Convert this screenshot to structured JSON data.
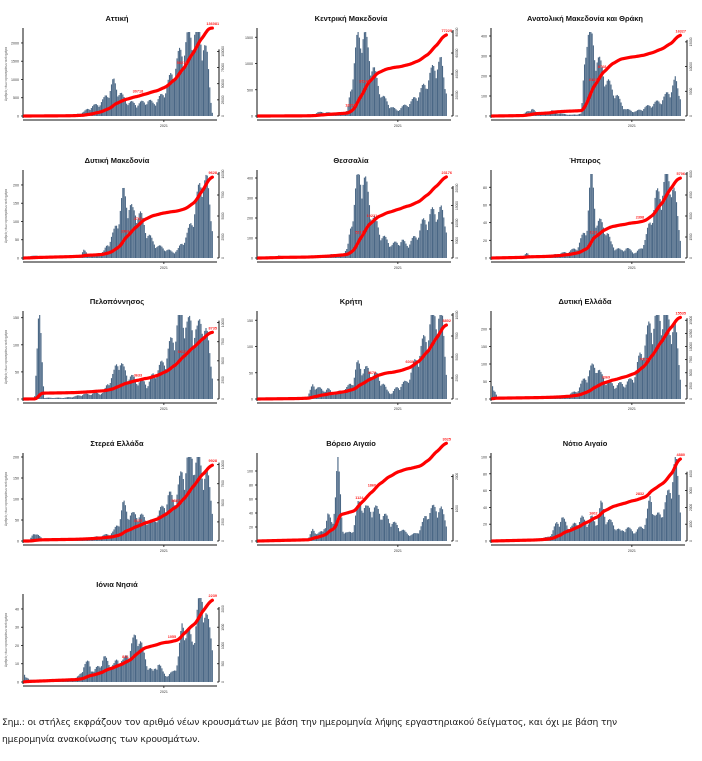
{
  "chart_data": [
    {
      "type": "bar",
      "title": "Αττική",
      "region_index": 0,
      "ylabel": "Αριθμός νέων κρουσμάτων ανά ημέρα",
      "xtick": "2021",
      "ylim": [
        0,
        2300
      ],
      "yticks": [
        0,
        500,
        1000,
        1500,
        2000
      ],
      "y2lim": [
        0,
        130000
      ],
      "y2ticks": [
        0,
        25000,
        50000,
        75000,
        100000
      ],
      "bars_profile": [
        5,
        5,
        5,
        5,
        6,
        6,
        6,
        8,
        10,
        15,
        30,
        60,
        100,
        200,
        250,
        300,
        400,
        600,
        850,
        650,
        450,
        350,
        320,
        300,
        350,
        380,
        330,
        400,
        550,
        800,
        1100,
        1400,
        1700,
        1900,
        2100,
        2200,
        2000,
        1400,
        100
      ],
      "cumulative_labels": [
        {
          "at": 0.62,
          "text": "30718"
        },
        {
          "at": 0.85,
          "text": "56218"
        },
        {
          "at": 1.0,
          "text": "136081"
        }
      ],
      "cumulative_end": 136081
    },
    {
      "type": "bar",
      "title": "Κεντρική Μακεδονία",
      "region_index": 1,
      "ylabel": "",
      "xtick": "2021",
      "ylim": [
        0,
        1600
      ],
      "yticks": [
        0,
        500,
        1000,
        1500
      ],
      "y2lim": [
        0,
        80000
      ],
      "y2ticks": [
        0,
        20000,
        40000,
        60000,
        80000
      ],
      "bars_profile": [
        2,
        2,
        2,
        2,
        3,
        3,
        3,
        3,
        4,
        5,
        10,
        30,
        60,
        70,
        60,
        50,
        50,
        60,
        80,
        700,
        1300,
        1500,
        1200,
        900,
        600,
        350,
        250,
        150,
        100,
        150,
        200,
        250,
        350,
        450,
        600,
        750,
        950,
        900,
        500
      ],
      "cumulative_labels": [
        {
          "at": 0.5,
          "text": "18275"
        },
        {
          "at": 0.58,
          "text": "35140"
        },
        {
          "at": 1.0,
          "text": "77229"
        }
      ],
      "cumulative_end": 77229
    },
    {
      "type": "bar",
      "title": "Ανατολική Μακεδονία και Θράκη",
      "region_index": 2,
      "ylabel": "",
      "xtick": "2021",
      "ylim": [
        0,
        420
      ],
      "yticks": [
        0,
        100,
        200,
        300,
        400
      ],
      "y2lim": [
        0,
        17000
      ],
      "y2ticks": [
        0,
        5000,
        10000,
        15000
      ],
      "bars_profile": [
        2,
        2,
        2,
        2,
        3,
        3,
        3,
        20,
        35,
        10,
        8,
        10,
        25,
        15,
        10,
        8,
        5,
        8,
        10,
        400,
        350,
        280,
        220,
        170,
        130,
        100,
        60,
        30,
        25,
        20,
        30,
        40,
        50,
        60,
        70,
        90,
        120,
        160,
        100
      ],
      "cumulative_labels": [
        {
          "at": 0.55,
          "text": "6426"
        },
        {
          "at": 0.6,
          "text": "8768"
        },
        {
          "at": 1.0,
          "text": "16327"
        }
      ],
      "cumulative_end": 16327
    },
    {
      "type": "bar",
      "title": "Δυτική Μακεδονία",
      "region_index": 3,
      "ylabel": "Αριθμός νέων κρουσμάτων ανά ημέρα",
      "xtick": "2021",
      "ylim": [
        0,
        230
      ],
      "yticks": [
        0,
        50,
        100,
        150,
        200
      ],
      "y2lim": [
        0,
        10000
      ],
      "y2ticks": [
        0,
        2500,
        5000,
        7500,
        10000
      ],
      "bars_profile": [
        2,
        3,
        8,
        3,
        3,
        3,
        3,
        3,
        3,
        3,
        5,
        5,
        20,
        5,
        5,
        10,
        15,
        40,
        60,
        100,
        160,
        140,
        110,
        120,
        90,
        60,
        40,
        30,
        25,
        20,
        15,
        20,
        40,
        60,
        100,
        150,
        210,
        180,
        90
      ],
      "cumulative_labels": [
        {
          "at": 0.55,
          "text": "2906"
        },
        {
          "at": 0.62,
          "text": "4766"
        },
        {
          "at": 1.0,
          "text": "9628"
        }
      ],
      "cumulative_end": 9628
    },
    {
      "type": "bar",
      "title": "Θεσσαλία",
      "region_index": 4,
      "ylabel": "",
      "xtick": "2021",
      "ylim": [
        0,
        420
      ],
      "yticks": [
        0,
        100,
        200,
        300,
        400
      ],
      "y2lim": [
        0,
        24000
      ],
      "y2ticks": [
        0,
        5000,
        10000,
        15000,
        20000
      ],
      "bars_profile": [
        2,
        2,
        8,
        2,
        15,
        2,
        2,
        2,
        2,
        3,
        5,
        10,
        10,
        10,
        10,
        20,
        15,
        20,
        40,
        200,
        350,
        400,
        300,
        200,
        150,
        100,
        80,
        60,
        70,
        80,
        60,
        80,
        100,
        150,
        180,
        200,
        220,
        210,
        160
      ],
      "cumulative_labels": [
        {
          "at": 0.55,
          "text": "5211"
        },
        {
          "at": 0.62,
          "text": "10221"
        },
        {
          "at": 1.0,
          "text": "23176"
        }
      ],
      "cumulative_end": 23176
    },
    {
      "type": "bar",
      "title": "Ήπειρος",
      "region_index": 5,
      "ylabel": "",
      "xtick": "2021",
      "ylim": [
        0,
        95
      ],
      "yticks": [
        0,
        20,
        40,
        60,
        80
      ],
      "y2lim": [
        0,
        6000
      ],
      "y2ticks": [
        0,
        1500,
        3000,
        4500,
        6000
      ],
      "bars_profile": [
        1,
        1,
        1,
        1,
        1,
        1,
        1,
        5,
        1,
        1,
        1,
        2,
        3,
        4,
        5,
        6,
        8,
        10,
        20,
        30,
        90,
        40,
        35,
        30,
        15,
        10,
        8,
        10,
        8,
        5,
        10,
        20,
        40,
        60,
        70,
        80,
        85,
        60,
        25
      ],
      "cumulative_labels": [
        {
          "at": 0.55,
          "text": "1132"
        },
        {
          "at": 0.8,
          "text": "2398"
        },
        {
          "at": 1.0,
          "text": "5706"
        }
      ],
      "cumulative_end": 5706
    },
    {
      "type": "bar",
      "title": "Πελοπόννησος",
      "region_index": 6,
      "ylabel": "Αριθμός νέων κρουσμάτων ανά ημέρα",
      "xtick": "2021",
      "ylim": [
        0,
        155
      ],
      "yticks": [
        0,
        50,
        100,
        150
      ],
      "y2lim": [
        0,
        11000
      ],
      "y2ticks": [
        0,
        2500,
        5000,
        7500,
        10000
      ],
      "bars_profile": [
        1,
        1,
        1,
        150,
        2,
        2,
        2,
        2,
        2,
        3,
        4,
        6,
        8,
        8,
        10,
        10,
        10,
        30,
        40,
        70,
        50,
        40,
        35,
        30,
        30,
        25,
        40,
        50,
        60,
        80,
        100,
        130,
        150,
        120,
        130,
        110,
        140,
        100,
        50
      ],
      "cumulative_labels": [
        {
          "at": 0.62,
          "text": "3633"
        },
        {
          "at": 0.85,
          "text": "6012"
        },
        {
          "at": 1.0,
          "text": "8735"
        }
      ],
      "cumulative_end": 8735
    },
    {
      "type": "bar",
      "title": "Κρήτη",
      "region_index": 7,
      "ylabel": "",
      "xtick": "2021",
      "ylim": [
        0,
        160
      ],
      "yticks": [
        0,
        50,
        100,
        150
      ],
      "y2lim": [
        0,
        10000
      ],
      "y2ticks": [
        0,
        2500,
        5000,
        7500,
        10000
      ],
      "bars_profile": [
        1,
        1,
        1,
        1,
        1,
        1,
        1,
        1,
        2,
        3,
        5,
        25,
        20,
        15,
        18,
        10,
        12,
        15,
        20,
        30,
        60,
        55,
        50,
        45,
        40,
        30,
        15,
        10,
        20,
        25,
        30,
        50,
        70,
        90,
        110,
        140,
        150,
        150,
        60
      ],
      "cumulative_labels": [
        {
          "at": 0.62,
          "text": "3676"
        },
        {
          "at": 0.82,
          "text": "6030"
        },
        {
          "at": 1.0,
          "text": "8802"
        }
      ],
      "cumulative_end": 8802
    },
    {
      "type": "bar",
      "title": "Δυτική Ελλάδα",
      "region_index": 8,
      "ylabel": "",
      "xtick": "2021",
      "ylim": [
        0,
        240
      ],
      "yticks": [
        0,
        50,
        100,
        150,
        200
      ],
      "y2lim": [
        0,
        16000
      ],
      "y2ticks": [
        0,
        2500,
        5000,
        7500,
        10000,
        12500,
        15000
      ],
      "bars_profile": [
        40,
        2,
        2,
        2,
        2,
        2,
        2,
        2,
        2,
        2,
        3,
        4,
        5,
        6,
        8,
        10,
        15,
        20,
        40,
        60,
        80,
        90,
        60,
        50,
        40,
        35,
        40,
        40,
        50,
        70,
        120,
        150,
        200,
        210,
        220,
        230,
        200,
        180,
        70
      ],
      "cumulative_labels": [
        {
          "at": 0.62,
          "text": "3369"
        },
        {
          "at": 0.82,
          "text": "7615"
        },
        {
          "at": 1.0,
          "text": "15535"
        }
      ],
      "cumulative_end": 15535
    },
    {
      "type": "bar",
      "title": "Στερεά Ελλάδα",
      "region_index": 9,
      "ylabel": "Αριθμός νέων κρουσμάτων ανά ημέρα",
      "xtick": "2021",
      "ylim": [
        0,
        200
      ],
      "yticks": [
        0,
        50,
        100,
        150,
        200
      ],
      "y2lim": [
        0,
        11000
      ],
      "y2ticks": [
        0,
        2500,
        5000,
        7500,
        10000
      ],
      "bars_profile": [
        1,
        1,
        20,
        10,
        2,
        2,
        2,
        2,
        2,
        2,
        3,
        4,
        5,
        6,
        8,
        10,
        12,
        15,
        20,
        40,
        80,
        60,
        55,
        60,
        50,
        45,
        40,
        60,
        70,
        100,
        90,
        110,
        150,
        180,
        190,
        170,
        160,
        140,
        80
      ],
      "cumulative_labels": [
        {
          "at": 0.62,
          "text": "3433"
        },
        {
          "at": 0.82,
          "text": "5887"
        },
        {
          "at": 1.0,
          "text": "9928"
        }
      ],
      "cumulative_end": 9928
    },
    {
      "type": "bar",
      "title": "Βόρειο Αιγαίο",
      "region_index": 10,
      "ylabel": "",
      "xtick": "2021",
      "ylim": [
        0,
        120
      ],
      "yticks": [
        0,
        20,
        40,
        60,
        80,
        100
      ],
      "y2lim": [
        0,
        2600
      ],
      "y2ticks": [
        0,
        1000,
        2000
      ],
      "bars_profile": [
        1,
        1,
        1,
        1,
        1,
        1,
        1,
        1,
        1,
        1,
        2,
        15,
        10,
        12,
        35,
        20,
        110,
        15,
        10,
        12,
        45,
        50,
        40,
        45,
        40,
        35,
        30,
        25,
        20,
        15,
        10,
        8,
        10,
        20,
        35,
        40,
        45,
        40,
        25
      ],
      "cumulative_labels": [
        {
          "at": 0.55,
          "text": "1124"
        },
        {
          "at": 0.62,
          "text": "1860"
        },
        {
          "at": 1.0,
          "text": "3025"
        }
      ],
      "cumulative_end": 3025
    },
    {
      "type": "bar",
      "title": "Νότιο Αιγαίο",
      "region_index": 11,
      "ylabel": "",
      "xtick": "2021",
      "ylim": [
        0,
        100
      ],
      "yticks": [
        0,
        20,
        40,
        60,
        80,
        100
      ],
      "y2lim": [
        0,
        5000
      ],
      "y2ticks": [
        0,
        1000,
        2000,
        3000,
        4000
      ],
      "bars_profile": [
        1,
        1,
        1,
        1,
        1,
        1,
        1,
        1,
        1,
        2,
        3,
        4,
        8,
        20,
        25,
        18,
        15,
        20,
        25,
        20,
        25,
        20,
        40,
        25,
        20,
        15,
        10,
        15,
        12,
        10,
        15,
        20,
        50,
        25,
        30,
        40,
        60,
        90,
        40
      ],
      "cumulative_labels": [
        {
          "at": 0.55,
          "text": "1602"
        },
        {
          "at": 0.8,
          "text": "2832"
        },
        {
          "at": 1.0,
          "text": "4880"
        }
      ],
      "cumulative_end": 4880
    },
    {
      "type": "bar",
      "title": "Ιόνια Νησιά",
      "region_index": 12,
      "ylabel": "Αριθμός νέων κρουσμάτων ανά ημέρα",
      "xtick": "2021",
      "ylim": [
        0,
        46
      ],
      "yticks": [
        0,
        10,
        20,
        30,
        40
      ],
      "y2lim": [
        0,
        2300
      ],
      "y2ticks": [
        0,
        500,
        1000,
        1500,
        2000
      ],
      "bars_profile": [
        4,
        1,
        1,
        1,
        1,
        1,
        1,
        1,
        1,
        1,
        1,
        3,
        8,
        10,
        5,
        8,
        12,
        10,
        8,
        12,
        10,
        15,
        20,
        25,
        15,
        8,
        5,
        10,
        5,
        3,
        5,
        10,
        30,
        25,
        20,
        35,
        45,
        30,
        20
      ],
      "cumulative_labels": [
        {
          "at": 0.55,
          "text": "844"
        },
        {
          "at": 0.8,
          "text": "1055"
        },
        {
          "at": 1.0,
          "text": "2239"
        }
      ],
      "cumulative_end": 2239
    }
  ],
  "colors": {
    "bar": "#4a6785",
    "line": "#ff0000",
    "label": "#ff2020",
    "axis": "#111111"
  },
  "note": {
    "line1": "Σημ.: οι στήλες εκφράζουν τον αριθμό νέων κρουσμάτων με βάση την ημερομηνία λήψης εργαστηριακού δείγματος, και όχι με βάση την",
    "line2": "ημερομηνία ανακοίνωσης των κρουσμάτων."
  }
}
